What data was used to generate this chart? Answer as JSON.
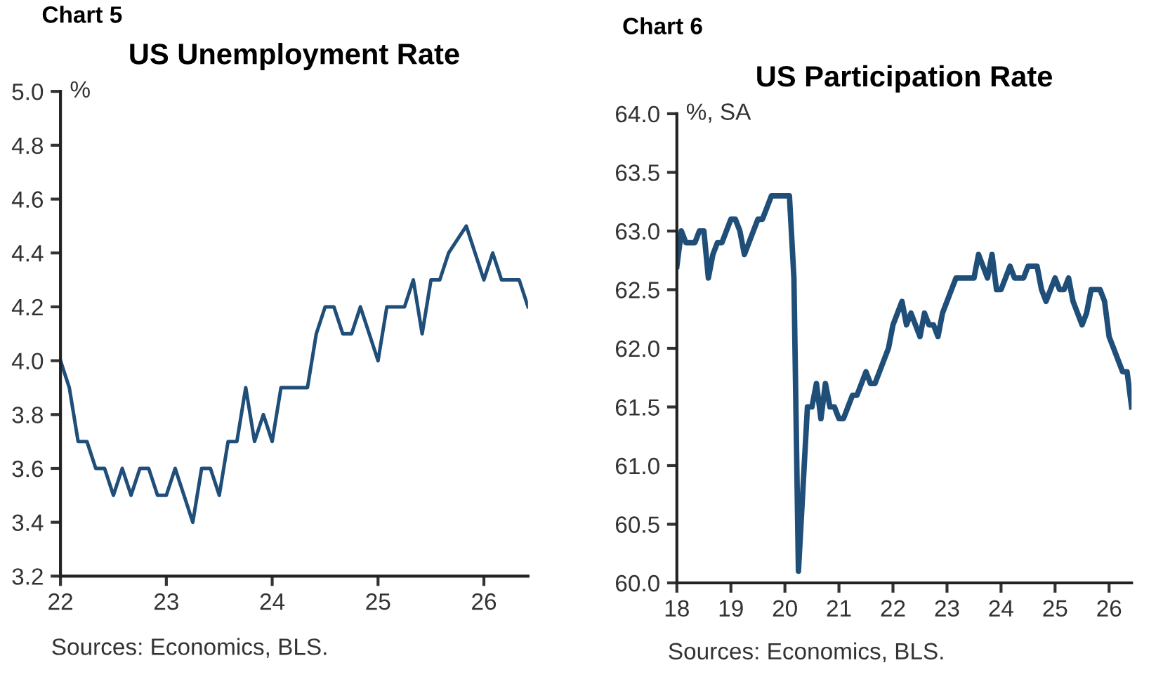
{
  "chart_data": [
    {
      "type": "line",
      "title": "US Unemployment Rate",
      "ylabel": "%",
      "annotations": [
        "Chart 5",
        "Sources: Economics, BLS."
      ],
      "series": [
        {
          "color": "#1f4e79",
          "x": [
            "2022-01",
            "2022-02",
            "2022-03",
            "2022-04",
            "2022-05",
            "2022-06",
            "2022-07",
            "2022-08",
            "2022-09",
            "2022-10",
            "2022-11",
            "2022-12",
            "2023-01",
            "2023-02",
            "2023-03",
            "2023-04",
            "2023-05",
            "2023-06",
            "2023-07",
            "2023-08",
            "2023-09",
            "2023-10",
            "2023-11",
            "2023-12",
            "2024-01",
            "2024-02",
            "2024-03",
            "2024-04",
            "2024-05",
            "2024-06",
            "2024-07",
            "2024-08",
            "2024-09",
            "2024-10",
            "2024-11",
            "2024-12",
            "2025-01",
            "2025-02",
            "2025-03",
            "2025-04",
            "2025-05",
            "2025-06",
            "2025-07",
            "2025-08",
            "2025-09",
            "2025-11",
            "2025-12",
            "2026-01",
            "2026-02",
            "2026-03",
            "2026-04",
            "2026-05",
            "2026-06"
          ],
          "values": [
            4.0,
            3.9,
            3.7,
            3.7,
            3.6,
            3.6,
            3.5,
            3.6,
            3.5,
            3.6,
            3.6,
            3.5,
            3.5,
            3.6,
            3.5,
            3.4,
            3.6,
            3.6,
            3.5,
            3.7,
            3.7,
            3.9,
            3.7,
            3.8,
            3.7,
            3.9,
            3.9,
            3.9,
            3.9,
            4.1,
            4.2,
            4.2,
            4.1,
            4.1,
            4.2,
            4.1,
            4.0,
            4.2,
            4.2,
            4.2,
            4.3,
            4.1,
            4.3,
            4.3,
            4.4,
            4.5,
            4.4,
            4.3,
            4.4,
            4.3,
            4.3,
            4.3,
            4.2
          ]
        }
      ],
      "xlim": [
        "2022-01",
        "2026-06"
      ],
      "xticks": [
        {
          "value": "2022-01",
          "label": "22"
        },
        {
          "value": "2023-01",
          "label": "23"
        },
        {
          "value": "2024-01",
          "label": "24"
        },
        {
          "value": "2025-01",
          "label": "25"
        },
        {
          "value": "2026-01",
          "label": "26"
        }
      ],
      "ylim": [
        3.2,
        5.0
      ],
      "yticks": [
        {
          "value": 3.2,
          "label": "3.2"
        },
        {
          "value": 3.4,
          "label": "3.4"
        },
        {
          "value": 3.6,
          "label": "3.6"
        },
        {
          "value": 3.8,
          "label": "3.8"
        },
        {
          "value": 4.0,
          "label": "4.0"
        },
        {
          "value": 4.2,
          "label": "4.2"
        },
        {
          "value": 4.4,
          "label": "4.4"
        },
        {
          "value": 4.6,
          "label": "4.6"
        },
        {
          "value": 4.8,
          "label": "4.8"
        },
        {
          "value": 5.0,
          "label": "5.0"
        }
      ],
      "grid": false,
      "legend": false
    },
    {
      "type": "line",
      "title": "US Participation Rate",
      "ylabel": "%, SA",
      "annotations": [
        "Chart 6",
        "Sources: Economics, BLS."
      ],
      "series": [
        {
          "color": "#1f4e79",
          "x": [
            "2018-01",
            "2018-02",
            "2018-03",
            "2018-04",
            "2018-05",
            "2018-06",
            "2018-07",
            "2018-08",
            "2018-09",
            "2018-10",
            "2018-11",
            "2018-12",
            "2019-01",
            "2019-02",
            "2019-03",
            "2019-04",
            "2019-05",
            "2019-06",
            "2019-07",
            "2019-08",
            "2019-09",
            "2019-10",
            "2019-11",
            "2019-12",
            "2020-01",
            "2020-02",
            "2020-03",
            "2020-04",
            "2020-05",
            "2020-06",
            "2020-07",
            "2020-08",
            "2020-09",
            "2020-10",
            "2020-11",
            "2020-12",
            "2021-01",
            "2021-02",
            "2021-03",
            "2021-04",
            "2021-05",
            "2021-06",
            "2021-07",
            "2021-08",
            "2021-09",
            "2021-10",
            "2021-11",
            "2021-12",
            "2022-01",
            "2022-02",
            "2022-03",
            "2022-04",
            "2022-05",
            "2022-06",
            "2022-07",
            "2022-08",
            "2022-09",
            "2022-10",
            "2022-11",
            "2022-12",
            "2023-01",
            "2023-02",
            "2023-03",
            "2023-04",
            "2023-05",
            "2023-06",
            "2023-07",
            "2023-08",
            "2023-09",
            "2023-10",
            "2023-11",
            "2023-12",
            "2024-01",
            "2024-02",
            "2024-03",
            "2024-04",
            "2024-05",
            "2024-06",
            "2024-07",
            "2024-08",
            "2024-09",
            "2024-10",
            "2024-11",
            "2024-12",
            "2025-01",
            "2025-02",
            "2025-03",
            "2025-04",
            "2025-05",
            "2025-06",
            "2025-07",
            "2025-08",
            "2025-09",
            "2025-11",
            "2025-12",
            "2026-01",
            "2026-02",
            "2026-03",
            "2026-04",
            "2026-05",
            "2026-06"
          ],
          "values": [
            62.7,
            63.0,
            62.9,
            62.9,
            62.9,
            63.0,
            63.0,
            62.6,
            62.8,
            62.9,
            62.9,
            63.0,
            63.1,
            63.1,
            63.0,
            62.8,
            62.9,
            63.0,
            63.1,
            63.1,
            63.2,
            63.3,
            63.3,
            63.3,
            63.3,
            63.3,
            62.6,
            60.1,
            60.8,
            61.5,
            61.5,
            61.7,
            61.4,
            61.7,
            61.5,
            61.5,
            61.4,
            61.4,
            61.5,
            61.6,
            61.6,
            61.7,
            61.8,
            61.7,
            61.7,
            61.8,
            61.9,
            62.0,
            62.2,
            62.3,
            62.4,
            62.2,
            62.3,
            62.2,
            62.1,
            62.3,
            62.2,
            62.2,
            62.1,
            62.3,
            62.4,
            62.5,
            62.6,
            62.6,
            62.6,
            62.6,
            62.6,
            62.8,
            62.7,
            62.6,
            62.8,
            62.5,
            62.5,
            62.6,
            62.7,
            62.6,
            62.6,
            62.6,
            62.7,
            62.7,
            62.7,
            62.5,
            62.4,
            62.5,
            62.6,
            62.5,
            62.5,
            62.6,
            62.4,
            62.3,
            62.2,
            62.3,
            62.5,
            62.5,
            62.4,
            62.1,
            62.0,
            61.9,
            61.8,
            61.8,
            61.5
          ]
        }
      ],
      "xlim": [
        "2018-01",
        "2026-06"
      ],
      "xticks": [
        {
          "value": "2018-01",
          "label": "18"
        },
        {
          "value": "2019-01",
          "label": "19"
        },
        {
          "value": "2020-01",
          "label": "20"
        },
        {
          "value": "2021-01",
          "label": "21"
        },
        {
          "value": "2022-01",
          "label": "22"
        },
        {
          "value": "2023-01",
          "label": "23"
        },
        {
          "value": "2024-01",
          "label": "24"
        },
        {
          "value": "2025-01",
          "label": "25"
        },
        {
          "value": "2026-01",
          "label": "26"
        }
      ],
      "ylim": [
        60.0,
        64.0
      ],
      "yticks": [
        {
          "value": 60.0,
          "label": "60.0"
        },
        {
          "value": 60.5,
          "label": "60.5"
        },
        {
          "value": 61.0,
          "label": "61.0"
        },
        {
          "value": 61.5,
          "label": "61.5"
        },
        {
          "value": 62.0,
          "label": "62.0"
        },
        {
          "value": 62.5,
          "label": "62.5"
        },
        {
          "value": 63.0,
          "label": "63.0"
        },
        {
          "value": 63.5,
          "label": "63.5"
        },
        {
          "value": 64.0,
          "label": "64.0"
        }
      ],
      "grid": false,
      "legend": false
    }
  ]
}
